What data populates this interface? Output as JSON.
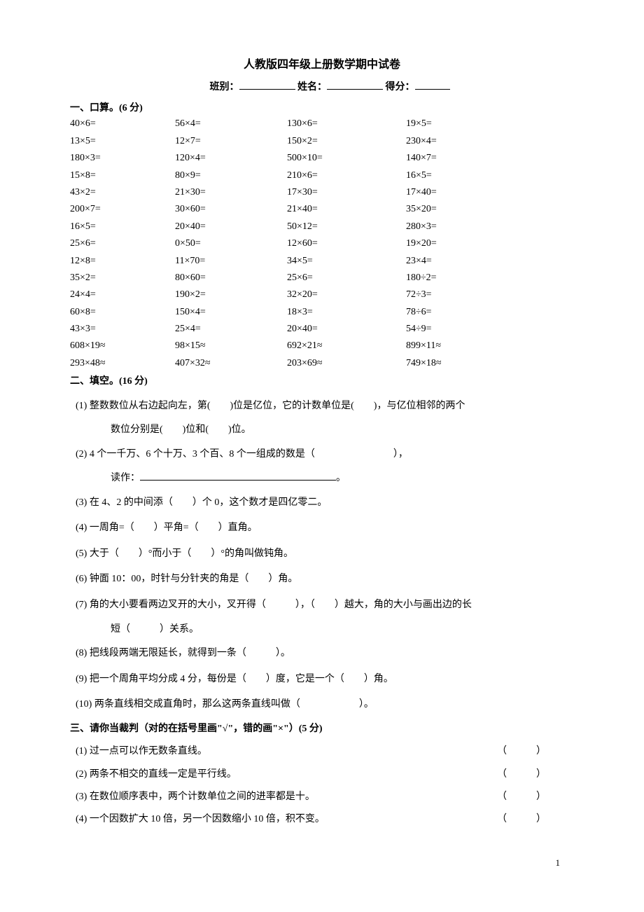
{
  "title": "人教版四年级上册数学期中试卷",
  "header": {
    "class_label": "班别：",
    "name_label": "姓名：",
    "score_label": "得分："
  },
  "section1": {
    "title": "一、口算。(6 分)",
    "rows": [
      [
        "40×6=",
        "56×4=",
        "130×6=",
        "19×5="
      ],
      [
        "13×5=",
        "12×7=",
        "150×2=",
        "230×4="
      ],
      [
        "180×3=",
        "120×4=",
        "500×10=",
        "140×7="
      ],
      [
        "15×8=",
        "80×9=",
        "210×6=",
        "16×5="
      ],
      [
        "43×2=",
        "21×30=",
        "17×30=",
        "17×40="
      ],
      [
        "200×7=",
        "30×60=",
        "21×40=",
        "35×20="
      ],
      [
        "16×5=",
        "20×40=",
        "50×12=",
        "280×3="
      ],
      [
        "25×6=",
        "0×50=",
        "12×60=",
        "19×20="
      ],
      [
        "12×8=",
        "11×70=",
        "34×5=",
        "23×4="
      ],
      [
        "35×2=",
        "80×60=",
        "25×6=",
        "180÷2="
      ],
      [
        "24×4=",
        "190×2=",
        "32×20=",
        "72÷3="
      ],
      [
        "60×8=",
        "150×4=",
        "18×3=",
        "78÷6="
      ],
      [
        "43×3=",
        "25×4=",
        "20×40=",
        "54÷9="
      ],
      [
        "608×19≈",
        "98×15≈",
        "692×21≈",
        "899×11≈"
      ],
      [
        "293×48≈",
        "407×32≈",
        "203×69≈",
        "749×18≈"
      ]
    ]
  },
  "section2": {
    "title": "二、填空。(16 分)",
    "items": [
      {
        "num": "(1)",
        "text": "整数数位从右边起向左，第(　　)位是亿位，它的计数单位是(　　)，与亿位相邻的两个",
        "cont": "数位分别是(　　)位和(　　)位。"
      },
      {
        "num": "(2)",
        "text": "4 个一千万、6 个十万、3 个百、8 个一组成的数是（　　　　　　　　），",
        "cont": "读作：",
        "hasLongBlank": true,
        "suffix": "。"
      },
      {
        "num": "(3)",
        "text": "在 4、2 的中间添（　　）个 0，这个数才是四亿零二。"
      },
      {
        "num": "(4)",
        "text": "一周角=（　　）平角=（　　）直角。"
      },
      {
        "num": "(5)",
        "text": "大于（　　）°而小于（　　）°的角叫做钝角。"
      },
      {
        "num": "(6)",
        "text": "钟面 10：00，时针与分针夹的角是（　　）角。"
      },
      {
        "num": "(7)",
        "text": "角的大小要看两边叉开的大小，叉开得（　　　），（　　）越大，角的大小与画出边的长",
        "cont": "短（　　　）关系。"
      },
      {
        "num": "(8)",
        "text": "把线段两端无限延长，就得到一条（　　　）。"
      },
      {
        "num": "(9)",
        "text": "把一个周角平均分成 4 分，每份是（　　）度，它是一个（　　）角。"
      },
      {
        "num": "(10)",
        "text": "两条直线相交成直角时，那么这两条直线叫做（　　　　　　）。"
      }
    ]
  },
  "section3": {
    "title": "三、请你当裁判（对的在括号里画\"√\"，错的画\"×\"）(5 分)",
    "items": [
      {
        "num": "(1)",
        "text": "过一点可以作无数条直线。"
      },
      {
        "num": "(2)",
        "text": "两条不相交的直线一定是平行线。"
      },
      {
        "num": "(3)",
        "text": "在数位顺序表中，两个计数单位之间的进率都是十。"
      },
      {
        "num": "(4)",
        "text": "一个因数扩大 10 倍，另一个因数缩小 10 倍，积不变。"
      }
    ],
    "paren": "（　　　）"
  },
  "pageNum": "1"
}
